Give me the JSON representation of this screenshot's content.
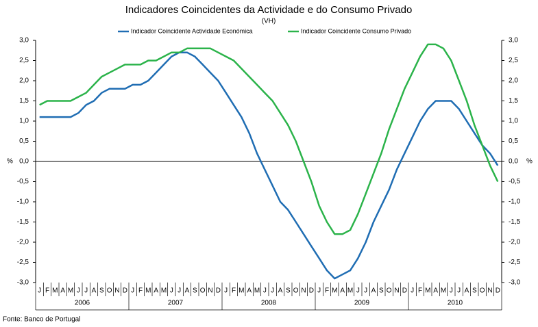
{
  "chart_data": {
    "type": "line",
    "title": "Indicadores Coincidentes da Actividade e do Consumo Privado",
    "subtitle": "(VH)",
    "ylabel": "%",
    "source": "Fonte: Banco de Portugal",
    "categories": [
      "J",
      "F",
      "M",
      "A",
      "M",
      "J",
      "J",
      "A",
      "S",
      "O",
      "N",
      "D",
      "J",
      "F",
      "M",
      "A",
      "M",
      "J",
      "J",
      "A",
      "S",
      "O",
      "N",
      "D",
      "J",
      "F",
      "M",
      "A",
      "M",
      "J",
      "J",
      "A",
      "S",
      "O",
      "N",
      "D",
      "J",
      "F",
      "M",
      "A",
      "M",
      "J",
      "J",
      "A",
      "S",
      "O",
      "N",
      "D",
      "J",
      "F",
      "M",
      "A",
      "M",
      "J",
      "J",
      "A",
      "S",
      "O",
      "N",
      "D"
    ],
    "years": [
      "2006",
      "2007",
      "2008",
      "2009",
      "2010"
    ],
    "ylim": [
      -3,
      3
    ],
    "yticks": [
      {
        "value": 3,
        "label": "3,0"
      },
      {
        "value": 2.5,
        "label": "2,5"
      },
      {
        "value": 2,
        "label": "2,0"
      },
      {
        "value": 1.5,
        "label": "1,5"
      },
      {
        "value": 1,
        "label": "1,0"
      },
      {
        "value": 0.5,
        "label": "0,5"
      },
      {
        "value": 0,
        "label": "0,0"
      },
      {
        "value": -0.5,
        "label": "-0,5"
      },
      {
        "value": -1,
        "label": "-1,0"
      },
      {
        "value": -1.5,
        "label": "-1,5"
      },
      {
        "value": -2,
        "label": "-2,0"
      },
      {
        "value": -2.5,
        "label": "-2,5"
      },
      {
        "value": -3,
        "label": "-3,0"
      }
    ],
    "legend": "top",
    "series": [
      {
        "name": "Indicador Coincidente Actividade Económica",
        "color": "#1f6db3",
        "values": [
          1.1,
          1.1,
          1.1,
          1.1,
          1.1,
          1.2,
          1.4,
          1.5,
          1.7,
          1.8,
          1.8,
          1.8,
          1.9,
          1.9,
          2.0,
          2.2,
          2.4,
          2.6,
          2.7,
          2.7,
          2.6,
          2.4,
          2.2,
          2.0,
          1.7,
          1.4,
          1.1,
          0.7,
          0.2,
          -0.2,
          -0.6,
          -1.0,
          -1.2,
          -1.5,
          -1.8,
          -2.1,
          -2.4,
          -2.7,
          -2.9,
          -2.8,
          -2.7,
          -2.4,
          -2.0,
          -1.5,
          -1.1,
          -0.7,
          -0.2,
          0.2,
          0.6,
          1.0,
          1.3,
          1.5,
          1.5,
          1.5,
          1.3,
          1.0,
          0.7,
          0.4,
          0.2,
          -0.1
        ]
      },
      {
        "name": "Indicador Coincidente Consumo Privado",
        "color": "#2bb34a",
        "values": [
          1.4,
          1.5,
          1.5,
          1.5,
          1.5,
          1.6,
          1.7,
          1.9,
          2.1,
          2.2,
          2.3,
          2.4,
          2.4,
          2.4,
          2.5,
          2.5,
          2.6,
          2.7,
          2.7,
          2.8,
          2.8,
          2.8,
          2.8,
          2.7,
          2.6,
          2.5,
          2.3,
          2.1,
          1.9,
          1.7,
          1.5,
          1.2,
          0.9,
          0.5,
          0.0,
          -0.5,
          -1.1,
          -1.5,
          -1.8,
          -1.8,
          -1.7,
          -1.3,
          -0.8,
          -0.3,
          0.2,
          0.8,
          1.3,
          1.8,
          2.2,
          2.6,
          2.9,
          2.9,
          2.8,
          2.5,
          2.0,
          1.5,
          0.9,
          0.4,
          -0.1,
          -0.5
        ]
      }
    ]
  }
}
